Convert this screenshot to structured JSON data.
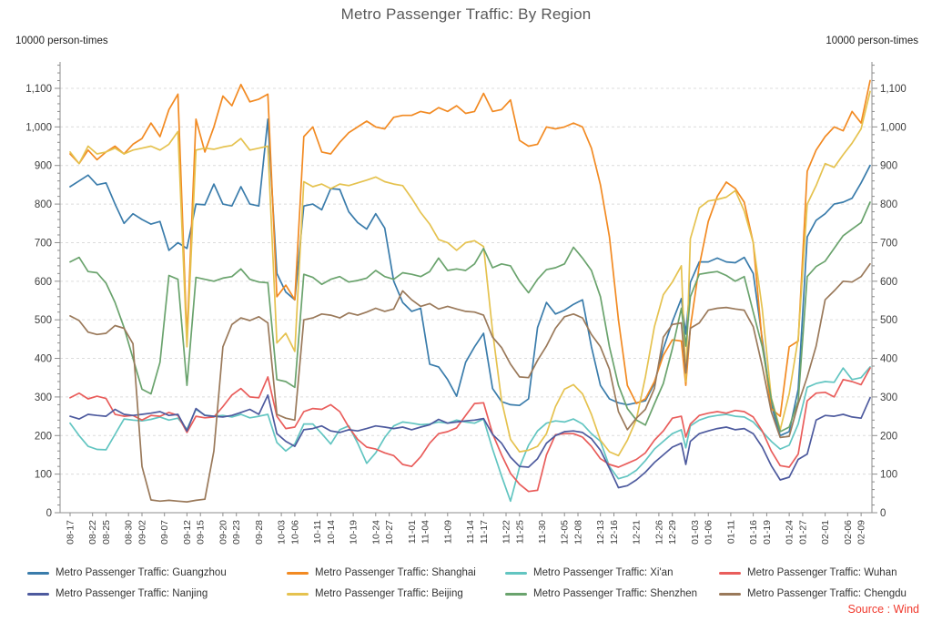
{
  "title": "Metro Passenger Traffic: By Region",
  "axis_units": {
    "left": "10000 person-times",
    "right": "10000 person-times"
  },
  "source": "Source : Wind",
  "colors": {
    "title_text": "#595959",
    "tick_text": "#404040",
    "axis_line": "#8c8c8c",
    "gridline": "#dcdcdc",
    "source_text": "#f03a2e"
  },
  "chart_data": {
    "type": "line",
    "title": "Metro Passenger Traffic: By Region",
    "ylabel_left": "10000 person-times",
    "ylabel_right": "10000 person-times",
    "ylim": [
      0,
      1160
    ],
    "y_major_tick_step": 100,
    "y_minor_tick_step": 20,
    "grid": "horizontal-dashed",
    "legend_position": "bottom",
    "x_unit": "days since 08-17",
    "x_tick_labels": [
      "08-17",
      "08-22",
      "08-25",
      "08-30",
      "09-02",
      "09-07",
      "09-12",
      "09-15",
      "09-20",
      "09-23",
      "09-28",
      "10-03",
      "10-06",
      "10-11",
      "10-14",
      "10-19",
      "10-24",
      "10-27",
      "11-01",
      "11-04",
      "11-09",
      "11-14",
      "11-17",
      "11-22",
      "11-25",
      "11-30",
      "12-05",
      "12-08",
      "12-13",
      "12-16",
      "12-21",
      "12-26",
      "12-29",
      "01-03",
      "01-06",
      "01-11",
      "01-16",
      "01-19",
      "01-24",
      "01-27",
      "02-01",
      "02-06",
      "02-09"
    ],
    "x_tick_days": [
      0,
      5,
      8,
      13,
      16,
      21,
      26,
      29,
      34,
      37,
      42,
      47,
      50,
      55,
      58,
      63,
      68,
      71,
      76,
      79,
      84,
      89,
      92,
      97,
      100,
      105,
      110,
      113,
      118,
      121,
      126,
      131,
      134,
      139,
      142,
      147,
      152,
      155,
      160,
      163,
      168,
      173,
      176
    ],
    "x_days": [
      0,
      2,
      4,
      6,
      8,
      10,
      12,
      14,
      16,
      18,
      20,
      22,
      24,
      26,
      28,
      30,
      32,
      34,
      36,
      38,
      40,
      42,
      44,
      46,
      48,
      50,
      52,
      54,
      56,
      58,
      60,
      62,
      64,
      66,
      68,
      70,
      72,
      74,
      76,
      78,
      80,
      82,
      84,
      86,
      88,
      90,
      92,
      94,
      96,
      98,
      100,
      102,
      104,
      106,
      108,
      110,
      112,
      114,
      116,
      118,
      120,
      122,
      124,
      126,
      128,
      130,
      132,
      134,
      136,
      137,
      138,
      140,
      142,
      144,
      146,
      148,
      150,
      152,
      154,
      156,
      158,
      160,
      162,
      164,
      166,
      168,
      170,
      172,
      174,
      176,
      178
    ],
    "series": [
      {
        "key": "guangzhou",
        "name": "Metro Passenger Traffic: Guangzhou",
        "color": "#3a7cab",
        "values": [
          845,
          860,
          875,
          850,
          855,
          800,
          750,
          775,
          760,
          748,
          755,
          680,
          700,
          685,
          800,
          798,
          852,
          800,
          795,
          845,
          800,
          795,
          1020,
          620,
          572,
          552,
          795,
          800,
          785,
          840,
          838,
          780,
          752,
          735,
          775,
          738,
          600,
          545,
          522,
          530,
          385,
          378,
          345,
          302,
          390,
          430,
          465,
          322,
          288,
          280,
          278,
          295,
          480,
          545,
          515,
          525,
          540,
          552,
          430,
          330,
          295,
          285,
          280,
          285,
          290,
          335,
          425,
          495,
          555,
          463,
          597,
          650,
          650,
          660,
          650,
          648,
          662,
          620,
          450,
          280,
          200,
          210,
          320,
          715,
          758,
          775,
          800,
          805,
          815,
          855,
          900
        ]
      },
      {
        "key": "shanghai",
        "name": "Metro Passenger Traffic: Shanghai",
        "color": "#f28a22",
        "values": [
          930,
          905,
          940,
          915,
          935,
          950,
          930,
          955,
          970,
          1010,
          975,
          1045,
          1085,
          450,
          1020,
          935,
          1000,
          1080,
          1055,
          1110,
          1065,
          1072,
          1085,
          560,
          590,
          552,
          975,
          1000,
          935,
          930,
          960,
          985,
          1000,
          1015,
          1000,
          995,
          1025,
          1030,
          1030,
          1040,
          1035,
          1050,
          1040,
          1055,
          1035,
          1040,
          1087,
          1040,
          1045,
          1070,
          965,
          950,
          955,
          1000,
          995,
          1000,
          1010,
          1000,
          945,
          850,
          715,
          500,
          330,
          283,
          295,
          340,
          408,
          448,
          445,
          330,
          480,
          640,
          755,
          820,
          857,
          840,
          805,
          700,
          440,
          270,
          250,
          430,
          445,
          885,
          940,
          975,
          1000,
          990,
          1040,
          1010,
          1120
        ]
      },
      {
        "key": "xian",
        "name": "Metro Passenger Traffic: Xi'an",
        "color": "#62c5c1",
        "values": [
          232,
          200,
          172,
          164,
          163,
          203,
          243,
          240,
          238,
          242,
          248,
          240,
          245,
          216,
          268,
          253,
          250,
          252,
          248,
          255,
          246,
          250,
          255,
          182,
          160,
          178,
          230,
          230,
          205,
          178,
          215,
          225,
          180,
          128,
          155,
          195,
          225,
          235,
          232,
          228,
          230,
          235,
          232,
          240,
          235,
          232,
          243,
          165,
          95,
          30,
          118,
          175,
          212,
          232,
          238,
          235,
          243,
          230,
          205,
          185,
          120,
          88,
          95,
          110,
          135,
          165,
          185,
          205,
          215,
          168,
          225,
          240,
          248,
          252,
          255,
          250,
          248,
          235,
          210,
          185,
          165,
          175,
          230,
          325,
          335,
          340,
          338,
          375,
          345,
          350,
          378
        ]
      },
      {
        "key": "wuhan",
        "name": "Metro Passenger Traffic: Wuhan",
        "color": "#e95d5b",
        "values": [
          298,
          310,
          295,
          302,
          296,
          255,
          250,
          252,
          240,
          252,
          250,
          260,
          252,
          208,
          250,
          246,
          248,
          275,
          305,
          322,
          300,
          298,
          352,
          250,
          218,
          222,
          262,
          270,
          268,
          280,
          262,
          222,
          190,
          170,
          165,
          155,
          148,
          125,
          120,
          145,
          180,
          205,
          210,
          220,
          252,
          283,
          285,
          205,
          150,
          102,
          74,
          55,
          58,
          150,
          202,
          205,
          205,
          196,
          172,
          140,
          125,
          118,
          128,
          138,
          155,
          188,
          212,
          245,
          250,
          196,
          230,
          252,
          258,
          262,
          258,
          265,
          262,
          248,
          212,
          160,
          122,
          118,
          152,
          290,
          310,
          312,
          300,
          345,
          340,
          332,
          375
        ]
      },
      {
        "key": "nanjing",
        "name": "Metro Passenger Traffic: Nanjing",
        "color": "#4d5a9e",
        "values": [
          250,
          243,
          255,
          252,
          250,
          268,
          255,
          252,
          255,
          258,
          262,
          252,
          255,
          212,
          270,
          252,
          250,
          248,
          252,
          260,
          268,
          255,
          305,
          205,
          185,
          172,
          215,
          218,
          225,
          212,
          208,
          215,
          212,
          218,
          225,
          222,
          218,
          222,
          215,
          222,
          228,
          242,
          232,
          235,
          238,
          240,
          244,
          203,
          180,
          144,
          120,
          118,
          140,
          180,
          200,
          210,
          212,
          208,
          192,
          162,
          115,
          65,
          70,
          85,
          105,
          130,
          150,
          170,
          180,
          125,
          185,
          205,
          212,
          218,
          222,
          215,
          218,
          205,
          170,
          122,
          85,
          92,
          138,
          152,
          240,
          252,
          250,
          255,
          248,
          245,
          298
        ]
      },
      {
        "key": "beijing",
        "name": "Metro Passenger Traffic: Beijing",
        "color": "#e5c24f",
        "values": [
          935,
          905,
          950,
          930,
          935,
          945,
          930,
          940,
          945,
          950,
          940,
          955,
          988,
          430,
          940,
          945,
          942,
          948,
          952,
          970,
          940,
          945,
          950,
          440,
          465,
          418,
          858,
          845,
          852,
          840,
          852,
          848,
          855,
          862,
          870,
          858,
          852,
          848,
          815,
          778,
          748,
          708,
          700,
          680,
          700,
          705,
          690,
          470,
          290,
          190,
          158,
          162,
          172,
          205,
          275,
          320,
          332,
          308,
          255,
          188,
          158,
          148,
          188,
          242,
          352,
          482,
          565,
          598,
          640,
          340,
          710,
          790,
          808,
          812,
          818,
          835,
          782,
          700,
          528,
          298,
          215,
          308,
          452,
          800,
          848,
          905,
          895,
          928,
          958,
          995,
          1092
        ]
      },
      {
        "key": "shenzhen",
        "name": "Metro Passenger Traffic: Shenzhen",
        "color": "#6aa36d",
        "values": [
          650,
          662,
          625,
          622,
          595,
          545,
          480,
          400,
          320,
          308,
          390,
          615,
          605,
          330,
          610,
          605,
          600,
          608,
          612,
          632,
          605,
          598,
          596,
          345,
          340,
          325,
          618,
          610,
          592,
          605,
          612,
          598,
          602,
          608,
          628,
          612,
          605,
          622,
          618,
          612,
          625,
          660,
          628,
          632,
          628,
          645,
          685,
          635,
          645,
          640,
          600,
          570,
          605,
          630,
          635,
          645,
          688,
          660,
          628,
          560,
          430,
          330,
          270,
          240,
          227,
          282,
          335,
          425,
          530,
          432,
          560,
          618,
          622,
          625,
          615,
          600,
          612,
          520,
          430,
          295,
          210,
          222,
          290,
          612,
          638,
          652,
          685,
          718,
          735,
          752,
          805
        ]
      },
      {
        "key": "chengdu",
        "name": "Metro Passenger Traffic: Chengdu",
        "color": "#9a795a",
        "values": [
          510,
          498,
          468,
          462,
          465,
          485,
          478,
          438,
          120,
          33,
          30,
          32,
          30,
          28,
          32,
          35,
          160,
          430,
          488,
          505,
          498,
          508,
          492,
          255,
          245,
          240,
          500,
          505,
          515,
          512,
          505,
          518,
          512,
          520,
          530,
          522,
          528,
          575,
          552,
          535,
          542,
          528,
          535,
          528,
          522,
          520,
          512,
          455,
          428,
          385,
          352,
          350,
          395,
          432,
          478,
          508,
          515,
          505,
          462,
          430,
          372,
          262,
          215,
          245,
          268,
          322,
          455,
          488,
          492,
          362,
          478,
          492,
          525,
          530,
          532,
          528,
          525,
          482,
          380,
          262,
          195,
          198,
          282,
          352,
          432,
          552,
          575,
          600,
          598,
          612,
          645
        ]
      }
    ]
  }
}
